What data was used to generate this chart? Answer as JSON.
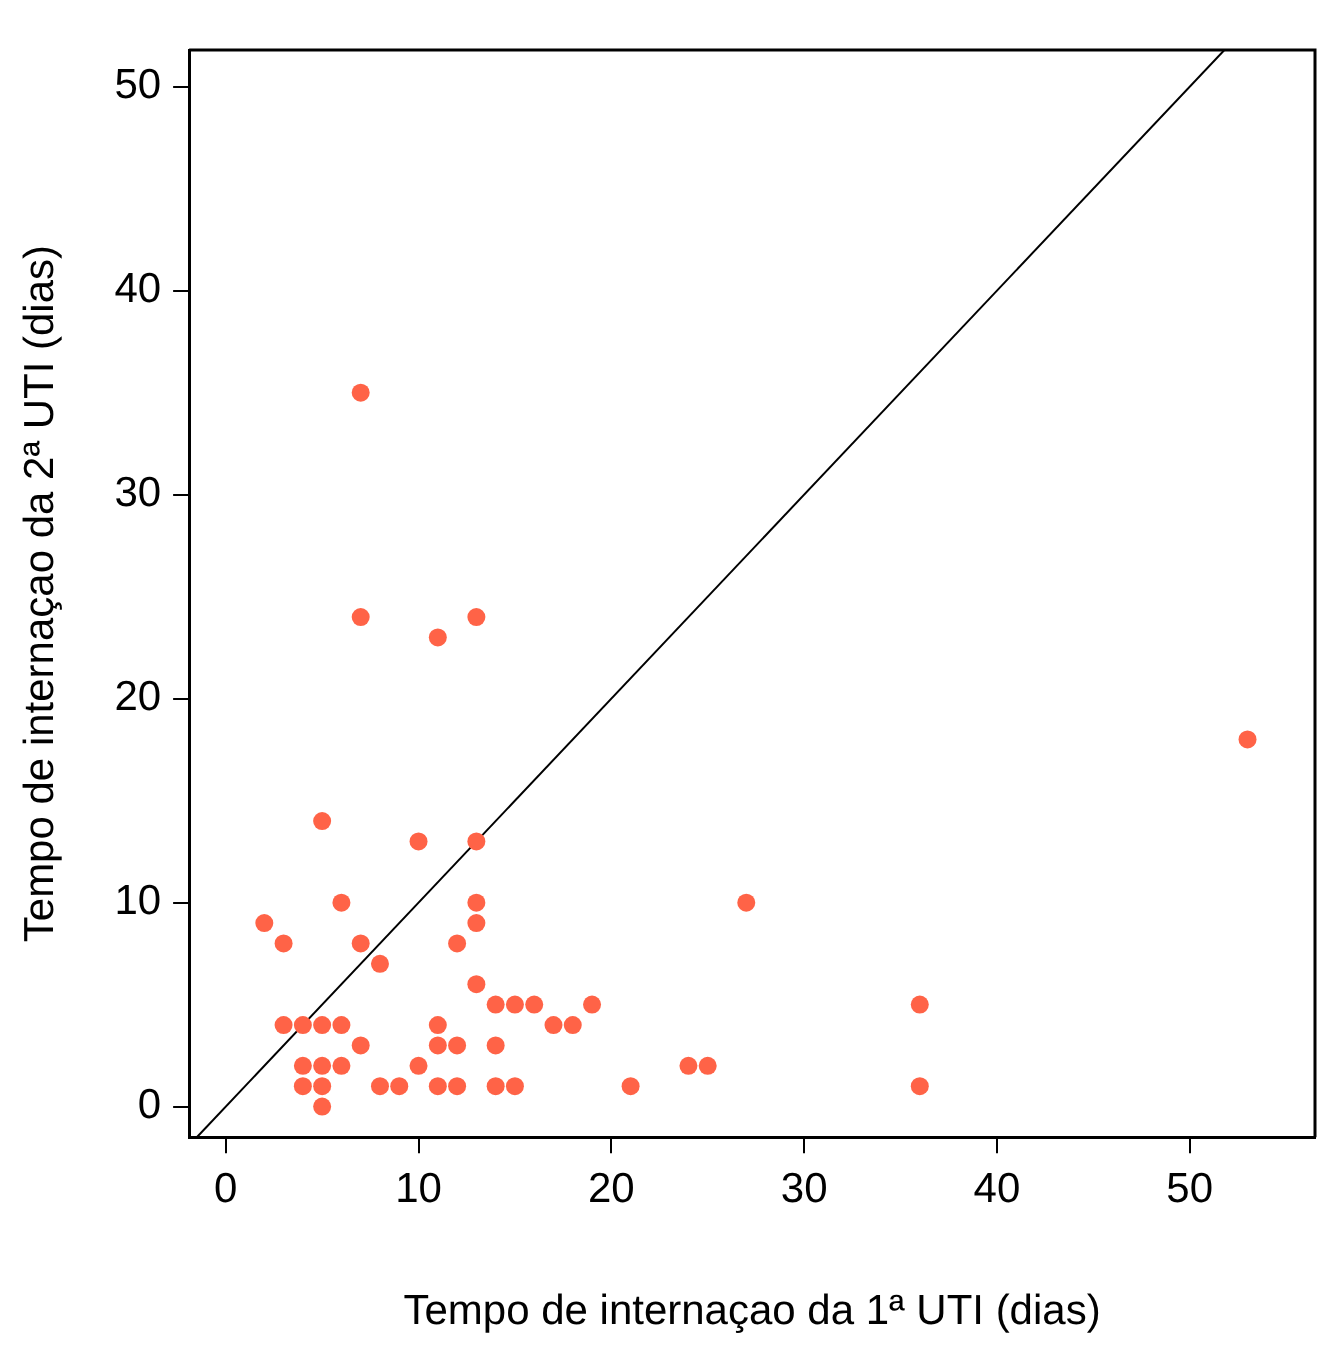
{
  "chart_data": {
    "type": "scatter",
    "xlabel": "Tempo de internaçao da 1ª UTI (dias)",
    "ylabel": "Tempo de internaçao da 2ª UTI (dias)",
    "xlim": [
      -1.9,
      56.5
    ],
    "ylim": [
      -1.5,
      51.8
    ],
    "xticks": [
      0,
      10,
      20,
      30,
      40,
      50
    ],
    "yticks": [
      0,
      10,
      20,
      30,
      40,
      50
    ],
    "grid": false,
    "legend": false,
    "marker": "circle",
    "series": [
      {
        "color": "#ff6347",
        "x": [
          5,
          10,
          13,
          6,
          13,
          13,
          2,
          3,
          7,
          12,
          8,
          13,
          14,
          15,
          16,
          19,
          3,
          4,
          5,
          6,
          11,
          17,
          18,
          7,
          11,
          12,
          14,
          4,
          5,
          6,
          10,
          4,
          5,
          8,
          9,
          11,
          12,
          14,
          15,
          21,
          5,
          7,
          7,
          11,
          13,
          53,
          27,
          36,
          24,
          25,
          36
        ],
        "values": [
          14,
          13,
          13,
          10,
          10,
          9,
          9,
          8,
          8,
          8,
          7,
          6,
          5,
          5,
          5,
          5,
          4,
          4,
          4,
          4,
          4,
          4,
          4,
          3,
          3,
          3,
          3,
          2,
          2,
          2,
          2,
          1,
          1,
          1,
          1,
          1,
          1,
          1,
          1,
          1,
          0,
          35,
          24,
          23,
          24,
          18,
          10,
          5,
          2,
          2,
          1
        ]
      },
      {
        "type": "line",
        "color": "#000000",
        "x": [
          -1.5,
          51.8
        ],
        "values": [
          -1.5,
          51.8
        ],
        "line_style": "solid",
        "marker": "none"
      }
    ]
  }
}
